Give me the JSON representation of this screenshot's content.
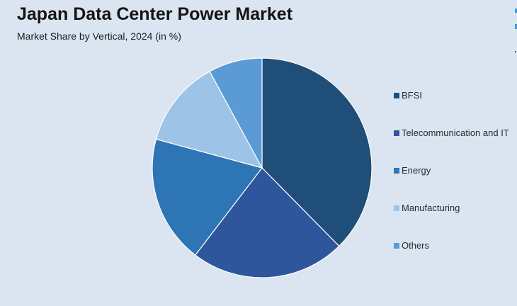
{
  "header": {
    "title": "Japan Data Center Power Market",
    "subtitle": "Market Share by Vertical, 2024 (in %)"
  },
  "chart_data": {
    "type": "pie",
    "title": "Japan Data Center Power Market",
    "subtitle": "Market Share by Vertical, 2024 (in %)",
    "categories": [
      "BFSI",
      "Telecommunication and IT",
      "Energy",
      "Manufacturing",
      "Others"
    ],
    "values": [
      38,
      23,
      19,
      13,
      8
    ],
    "colors": [
      "#1f4e79",
      "#2e569c",
      "#2e75b6",
      "#9dc3e6",
      "#5b9bd5"
    ],
    "start_angle_deg": 0,
    "direction": "clockwise",
    "legend_position": "right"
  }
}
